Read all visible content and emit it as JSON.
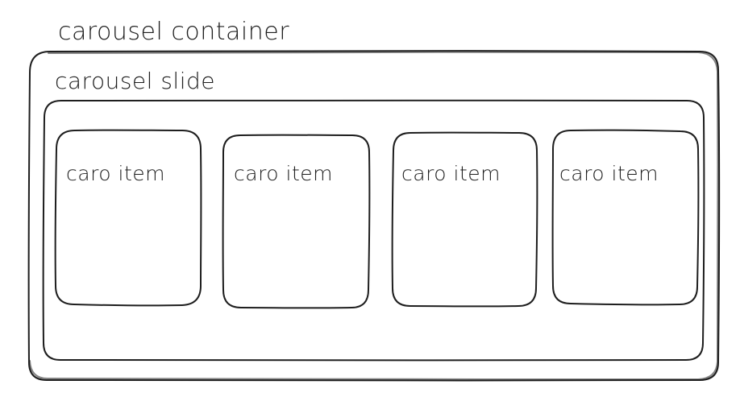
{
  "diagram": {
    "container_label": "carousel container",
    "slide_label": "carousel slide",
    "items": [
      {
        "label": "caro item"
      },
      {
        "label": "caro item"
      },
      {
        "label": "caro item"
      },
      {
        "label": "caro item"
      }
    ],
    "colors": {
      "stroke": "#1e1e1e",
      "background": "#ffffff"
    }
  }
}
